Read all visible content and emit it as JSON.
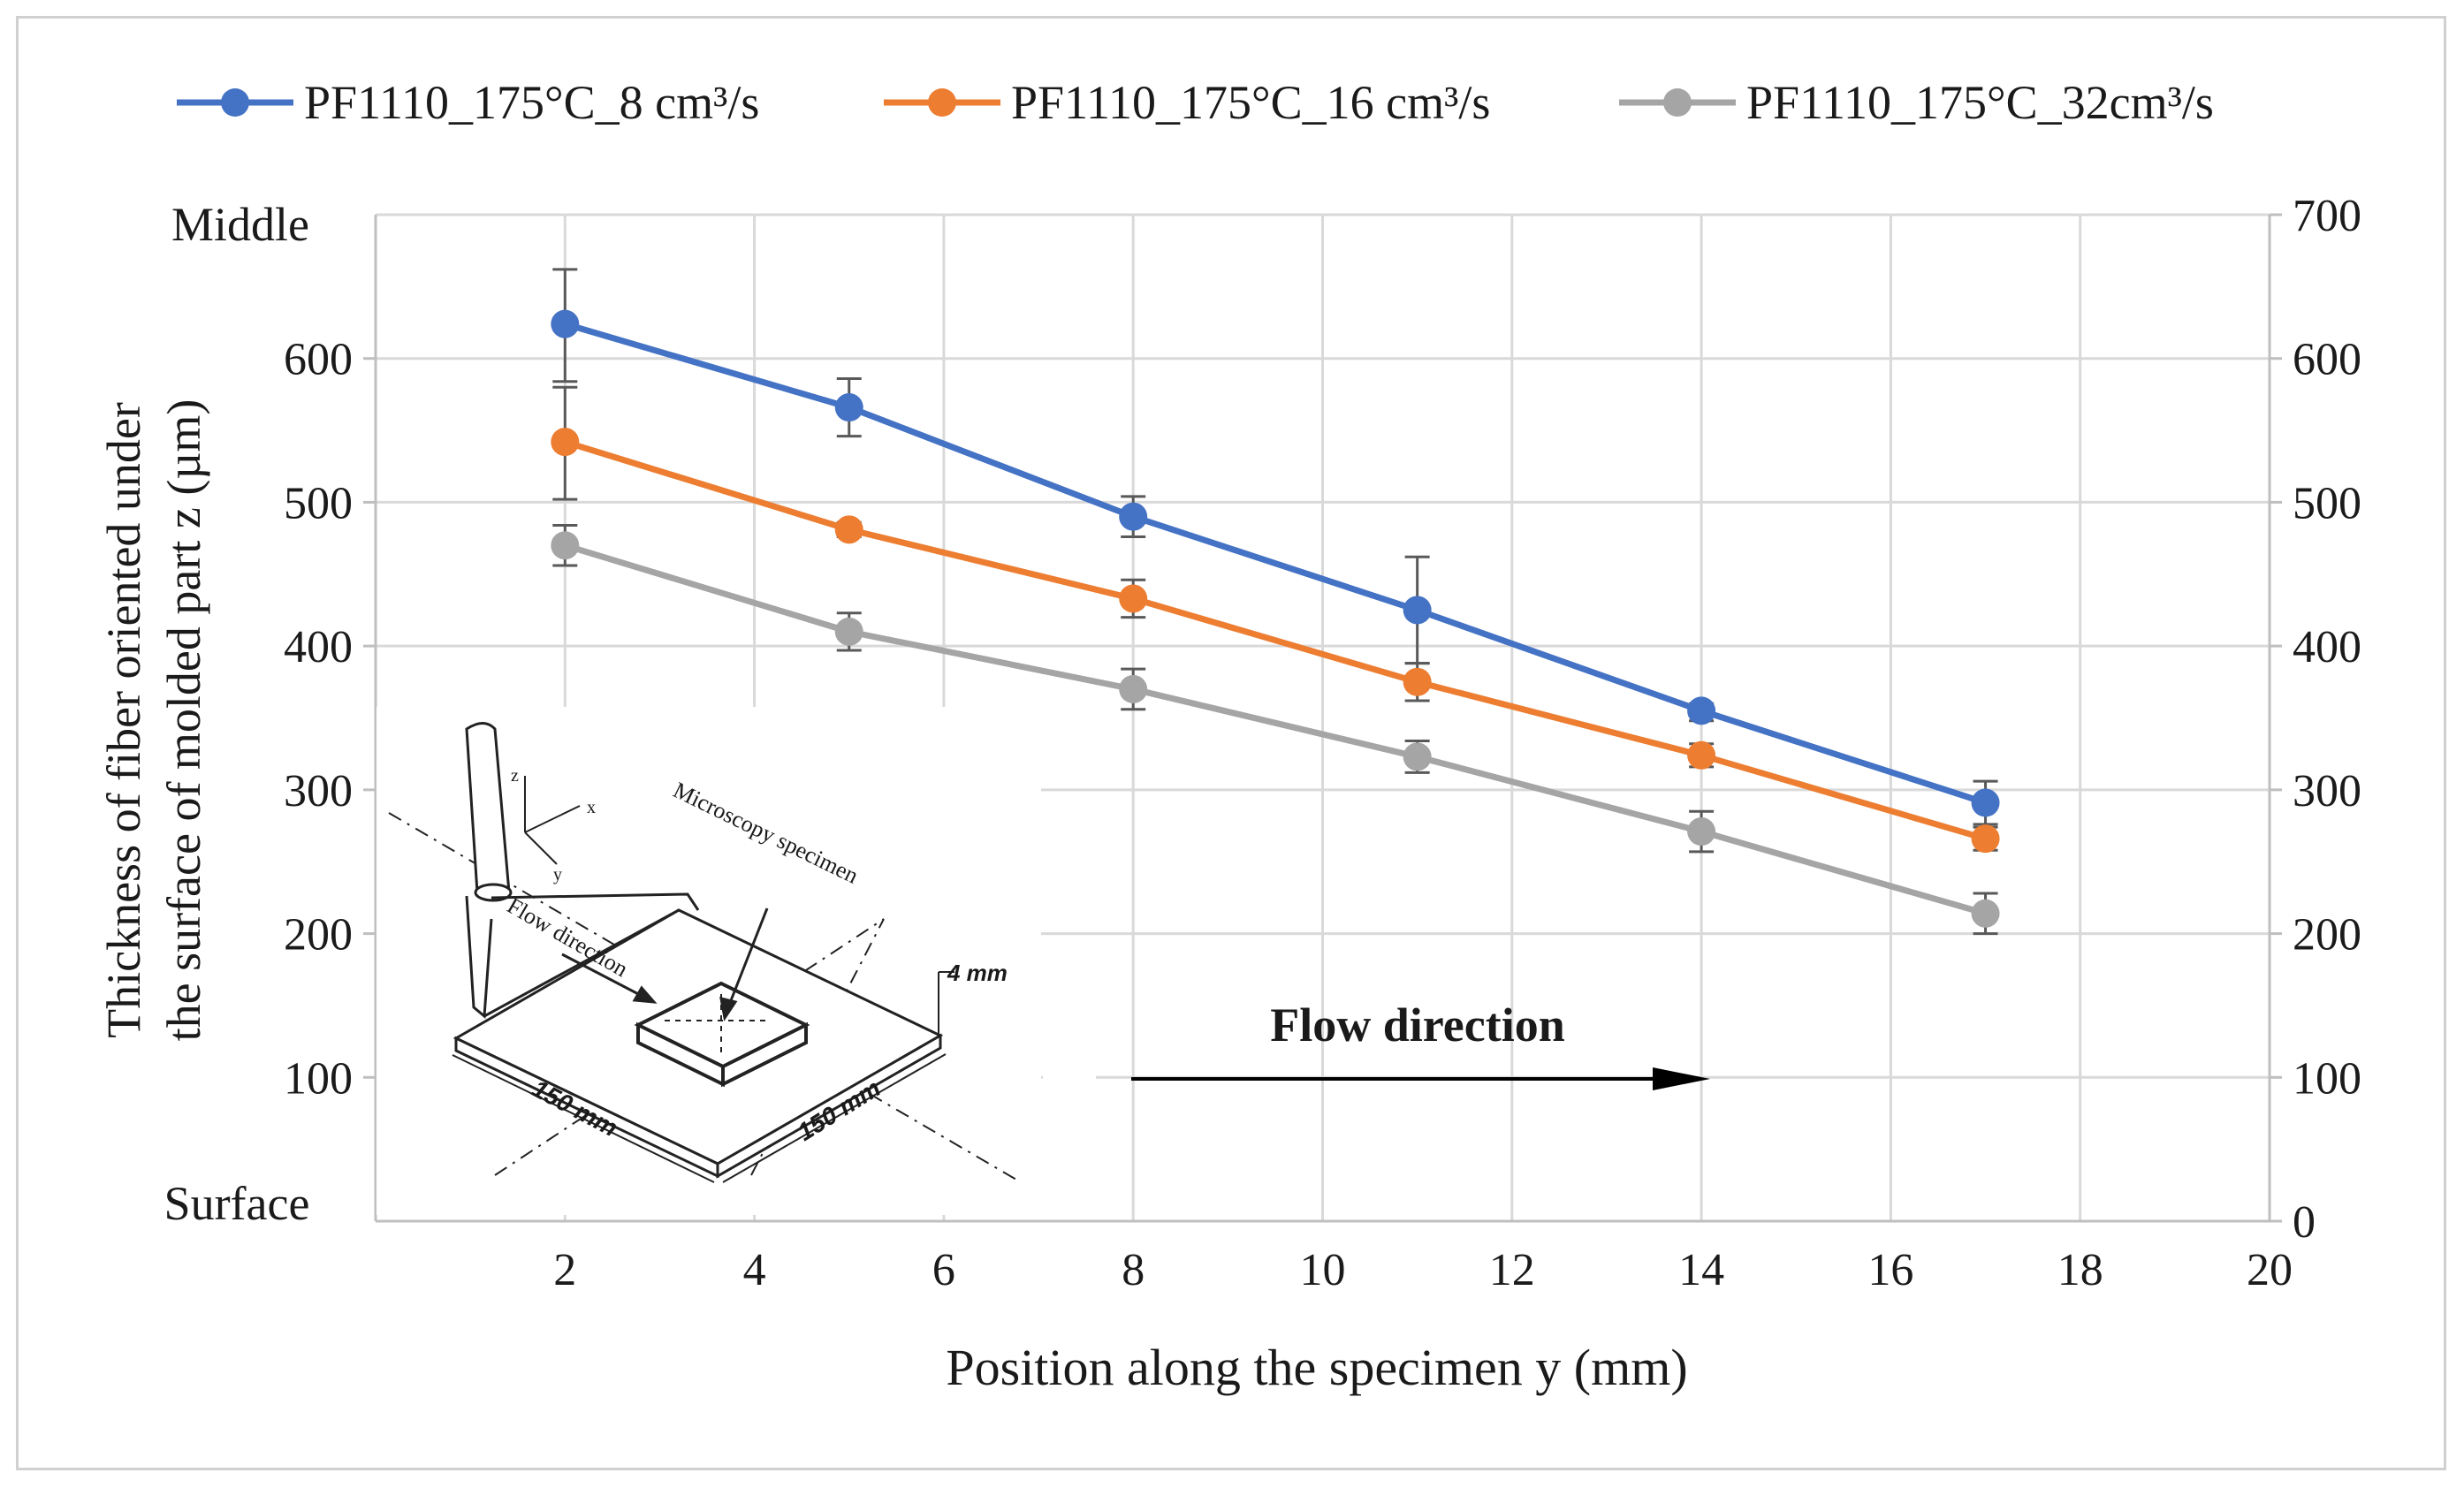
{
  "chart_data": {
    "type": "line",
    "x": [
      2,
      5,
      8,
      11,
      14,
      17
    ],
    "series": [
      {
        "name": "PF1110_175°C_8 cm³/s",
        "color": "#4472c4",
        "values": [
          624,
          566,
          490,
          425,
          355,
          291
        ],
        "err_low": [
          584,
          546,
          476,
          388,
          348,
          276
        ],
        "err_high": [
          662,
          586,
          504,
          462,
          360,
          306
        ]
      },
      {
        "name": "PF1110_175°C_16 cm³/s",
        "color": "#ed7d31",
        "values": [
          542,
          481,
          433,
          375,
          324,
          266
        ],
        "err_low": [
          502,
          476,
          420,
          362,
          316,
          258
        ],
        "err_high": [
          580,
          486,
          446,
          388,
          332,
          274
        ]
      },
      {
        "name": "PF1110_175°C_32cm³/s",
        "color": "#a5a5a5",
        "values": [
          470,
          410,
          370,
          323,
          271,
          214
        ],
        "err_low": [
          456,
          397,
          356,
          312,
          257,
          200
        ],
        "err_high": [
          484,
          423,
          384,
          334,
          285,
          228
        ]
      }
    ],
    "xlabel": "Position along the specimen y (mm)",
    "ylabel_line1": "Thickness of fiber oriented under",
    "ylabel_line2": "the surface of molded part z (µm)",
    "xlim": [
      0,
      20
    ],
    "ylim": [
      0,
      700
    ],
    "x_ticks": [
      "2",
      "4",
      "6",
      "8",
      "10",
      "12",
      "14",
      "16",
      "18",
      "20"
    ],
    "y_ticks_left": [
      "100",
      "200",
      "300",
      "400",
      "500",
      "600"
    ],
    "y_ticks_right": [
      "0",
      "100",
      "200",
      "300",
      "400",
      "500",
      "600",
      "700"
    ],
    "y_top_label": "Middle",
    "y_bottom_label": "Surface",
    "legend_position": "top",
    "grid": true,
    "annotation": "Flow direction"
  },
  "inset": {
    "axis_labels": [
      "z",
      "x",
      "y"
    ],
    "specimen_label": "Microscopy specimen",
    "flow_label": "Flow direction",
    "thickness_label": "4 mm",
    "width_label": "150 mm",
    "length_label": "150 mm"
  }
}
